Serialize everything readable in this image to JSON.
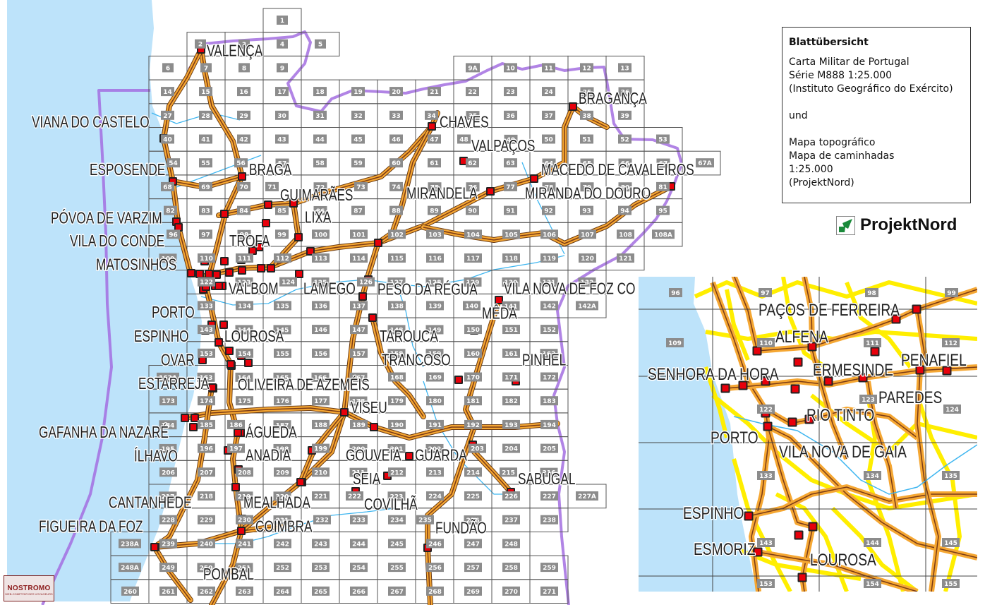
{
  "legend": {
    "title": "Blattübersicht",
    "lines_1": [
      "Carta Militar de Portugal",
      "Série M888 1:25.000",
      "(Instituto Geográfico do Exército)"
    ],
    "und": "und",
    "lines_2": [
      "Mapa topográfico",
      "Mapa de caminhadas",
      "1:25.000",
      "(ProjektNord)"
    ]
  },
  "logos": {
    "projektnord": "ProjektNord",
    "nostromo": "NOSTROMO",
    "nostromo_sub": "WEB-COMPTOIR DES VOYAGEURS"
  },
  "colors": {
    "sea": "#bde3fa",
    "border": "#a36ee0",
    "road_major": "#f5a733",
    "road_core": "#7a3b16",
    "road_minor": "#ffee00",
    "city": "#e8000b",
    "river": "#3fb6f0",
    "sheet_label": "#8c8c8c"
  },
  "sheet_rows": [
    [
      "",
      "",
      "",
      "",
      "1"
    ],
    [
      "",
      "",
      "2",
      "3",
      "4",
      "5"
    ],
    [
      "",
      "6",
      "7",
      "8",
      "9",
      "",
      "",
      "",
      "",
      "9A",
      "10",
      "11",
      "12",
      "13"
    ],
    [
      "",
      "14",
      "15",
      "16",
      "17",
      "18",
      "19",
      "20",
      "21",
      "22",
      "23",
      "24",
      "25",
      "26"
    ],
    [
      "",
      "27",
      "28",
      "29",
      "30",
      "31",
      "32",
      "33",
      "34",
      "35",
      "36",
      "37",
      "38",
      "39"
    ],
    [
      "",
      "40",
      "41",
      "42",
      "43",
      "44",
      "45",
      "46",
      "47",
      "48",
      "49",
      "50",
      "51",
      "52",
      "53"
    ],
    [
      "",
      "54",
      "55",
      "56",
      "57",
      "58",
      "59",
      "60",
      "61",
      "62",
      "63",
      "64",
      "65",
      "66",
      "67",
      "67A"
    ],
    [
      "",
      "68",
      "69",
      "70",
      "71",
      "72",
      "73",
      "74",
      "75",
      "76",
      "77",
      "78",
      "79",
      "80",
      "81"
    ],
    [
      "",
      "82",
      "83",
      "84",
      "85",
      "86",
      "87",
      "88",
      "89",
      "90",
      "91",
      "92",
      "93",
      "94",
      "95"
    ],
    [
      "",
      "96",
      "97",
      "98",
      "99",
      "100",
      "101",
      "102",
      "103",
      "104",
      "105",
      "106",
      "107",
      "108",
      "108A"
    ],
    [
      "",
      "109",
      "110",
      "111",
      "112",
      "113",
      "114",
      "115",
      "116",
      "117",
      "118",
      "119",
      "120",
      "121"
    ],
    [
      "",
      "",
      "122",
      "123",
      "124",
      "125",
      "126",
      "127",
      "128",
      "129",
      "130",
      "131",
      "132"
    ],
    [
      "",
      "",
      "133",
      "134",
      "135",
      "136",
      "137",
      "138",
      "139",
      "140",
      "141",
      "142",
      "142A"
    ],
    [
      "",
      "",
      "143",
      "144",
      "145",
      "146",
      "147",
      "148",
      "149",
      "150",
      "151",
      "152"
    ],
    [
      "",
      "",
      "153",
      "154",
      "155",
      "156",
      "157",
      "158",
      "159",
      "160",
      "161",
      "162"
    ],
    [
      "",
      "162A",
      "163",
      "164",
      "165",
      "166",
      "167",
      "168",
      "169",
      "170",
      "171",
      "172"
    ],
    [
      "",
      "173",
      "174",
      "175",
      "176",
      "177",
      "178",
      "179",
      "180",
      "181",
      "182",
      "183"
    ],
    [
      "",
      "184",
      "185",
      "186",
      "187",
      "188",
      "189",
      "190",
      "191",
      "192",
      "193",
      "194"
    ],
    [
      "",
      "195",
      "196",
      "197",
      "198",
      "199",
      "200",
      "201",
      "202",
      "203",
      "204",
      "205"
    ],
    [
      "",
      "206",
      "207",
      "208",
      "209",
      "210",
      "211",
      "212",
      "213",
      "214",
      "215",
      "216"
    ],
    [
      "",
      "217",
      "218",
      "219",
      "220",
      "221",
      "222",
      "223",
      "224",
      "225",
      "226",
      "227",
      "227A"
    ],
    [
      "",
      "228",
      "229",
      "230",
      "231",
      "232",
      "233",
      "234",
      "235",
      "236",
      "237",
      "238"
    ],
    [
      "238A",
      "239",
      "240",
      "241",
      "242",
      "243",
      "244",
      "245",
      "246",
      "247",
      "248"
    ],
    [
      "248A",
      "249",
      "250",
      "251",
      "252",
      "253",
      "254",
      "255",
      "256",
      "257",
      "258",
      "259"
    ],
    [
      "260",
      "261",
      "262",
      "263",
      "264",
      "265",
      "266",
      "267",
      "268",
      "269",
      "270",
      "271"
    ]
  ],
  "cities": [
    "VALENÇA",
    "BRAGANÇA",
    "CHAVES",
    "VALPAÇOS",
    "MACEDO DE CAVALEIROS",
    "MIRANDELA",
    "MIRANDA DO DOURO",
    "BRAGA",
    "GUIMARÃES",
    "TROFA",
    "LIXA",
    "VALBOM",
    "LAMEGO",
    "PESO DA RÉGUA",
    "VILA NOVA DE FOZ CO",
    "MÊDA",
    "TAROUCA",
    "TRANCOSO",
    "PINHEL",
    "LOUROSA",
    "OVAR",
    "OLIVEIRA DE AZEMÉIS",
    "ESTARREJA",
    "VISEU",
    "GAFANHA DA NAZARÉ",
    "ÁGUEDA",
    "ÍLHAVO",
    "ANADIA",
    "GOUVEIA",
    "GUARDA",
    "SEIA",
    "SABUGAL",
    "MEALHADA",
    "COVILHÃ",
    "CANTANHEDE",
    "COIMBRA",
    "FIGUEIRA DA FOZ",
    "FUNDÃO",
    "POMBAL",
    "VIANA DO CASTELO",
    "ESPOSENDE",
    "PÓVOA DE VARZIM",
    "VILA DO CONDE",
    "MATOSINHOS",
    "PORTO",
    "ESPINHO"
  ],
  "inset": {
    "sheet_rows": [
      [
        "96",
        "97",
        "98",
        "99"
      ],
      [
        "109",
        "110",
        "111",
        "112"
      ],
      [
        "",
        "122",
        "123",
        "124"
      ],
      [
        "",
        "133",
        "134",
        "135"
      ],
      [
        "",
        "143",
        "144",
        "145"
      ],
      [
        "",
        "153",
        "154",
        "155"
      ]
    ],
    "cities": [
      "PAÇOS DE FERREIRA",
      "ALFENA",
      "SENHORA DA HORA",
      "ERMESINDE",
      "PENAFIEL",
      "PAREDES",
      "RIO TINTO",
      "PORTO",
      "VILA NOVA DE GAIA",
      "ESPINHO",
      "ESMORIZ",
      "LOUROSA"
    ]
  }
}
